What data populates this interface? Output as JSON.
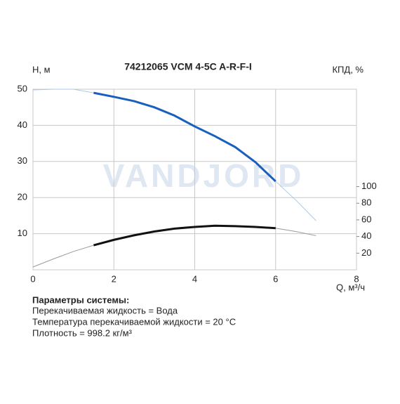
{
  "chart_data": {
    "type": "line",
    "title": "74212065 VCM 4-5C A-R-F-I",
    "watermark": "VANDJORD",
    "y_label": "H, м",
    "y2_label": "КПД, %",
    "x_label": "Q, м³/ч",
    "x": [
      0,
      0.5,
      1,
      1.5,
      2,
      2.5,
      3,
      3.5,
      4,
      4.5,
      5,
      5.5,
      6,
      6.5,
      7
    ],
    "working_range": [
      1.5,
      6
    ],
    "series": [
      {
        "name": "H",
        "color": "#1a5fc0",
        "light_color": "#a8c8ec",
        "axis": "y",
        "values": [
          49.8,
          50,
          50,
          49,
          47.9,
          46.7,
          45,
          42.7,
          39.7,
          37,
          34,
          29.8,
          24.5,
          19.3,
          13.6
        ]
      },
      {
        "name": "КПД",
        "color": "#111111",
        "light_color": "#999999",
        "axis": "y2",
        "values": [
          3.4,
          13,
          22,
          29.5,
          36,
          41.5,
          46,
          49.5,
          51.5,
          53,
          52.5,
          51.5,
          50,
          46,
          41
        ]
      }
    ],
    "xlim": [
      0,
      8
    ],
    "xticks": [
      0,
      2,
      4,
      6,
      8
    ],
    "ylim": [
      0,
      50
    ],
    "yticks": [
      10,
      20,
      30,
      40,
      50
    ],
    "y2lim": [
      0,
      217
    ],
    "y2ticks": [
      20,
      40,
      60,
      80,
      100
    ],
    "grid": true
  },
  "info": {
    "heading": "Параметры системы:",
    "lines": [
      "Перекачиваемая жидкость = Вода",
      "Температура перекачиваемой жидкости = 20 °C",
      "Плотность = 998.2 кг/м³"
    ]
  }
}
